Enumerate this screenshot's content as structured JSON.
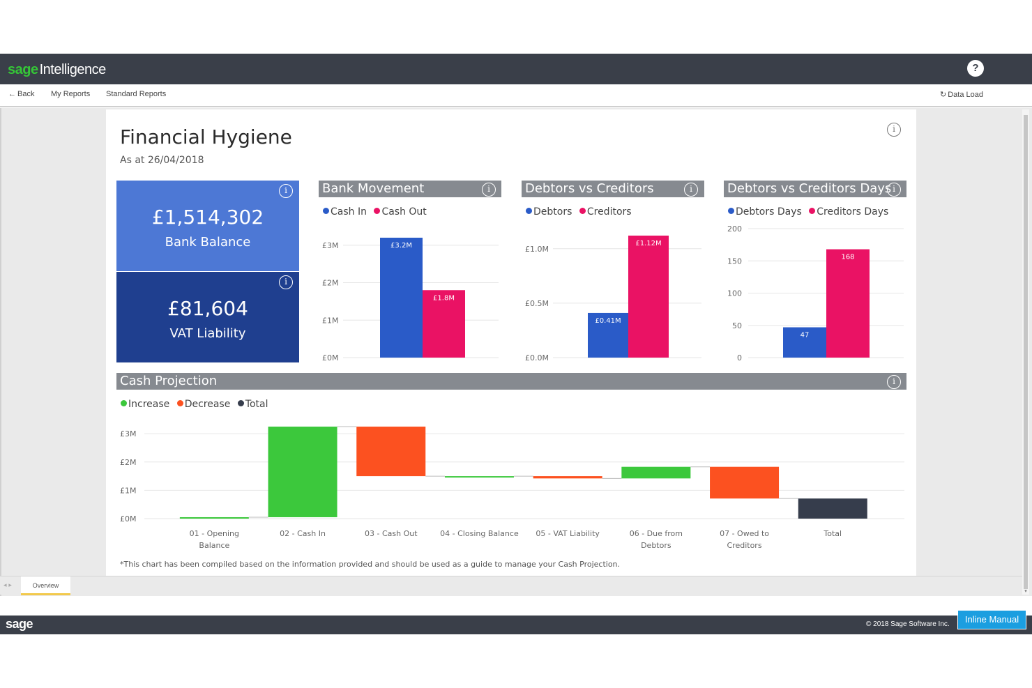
{
  "app": {
    "brand_sage": "sage",
    "brand_product": "Intelligence",
    "help_label": "?"
  },
  "nav": {
    "back": "Back",
    "my_reports": "My Reports",
    "standard_reports": "Standard Reports",
    "data_load": "Data Load"
  },
  "report": {
    "title": "Financial Hygiene",
    "subtitle": "As at 26/04/2018",
    "info_glyph": "i",
    "kpis": [
      {
        "value": "£1,514,302",
        "label": "Bank Balance",
        "color": "#4d78d5"
      },
      {
        "value": "£81,604",
        "label": "VAT Liability",
        "color": "#1f3f8f"
      }
    ],
    "footnote": "*This chart has been compiled based on the information provided and should be used as a guide to manage your Cash Projection."
  },
  "colors": {
    "blue": "#2a5bc8",
    "pink": "#ea1264",
    "green": "#3cc83c",
    "orange": "#fc5120",
    "dark": "#363d4c"
  },
  "chart_data": [
    {
      "type": "bar",
      "title": "Bank Movement",
      "categories": [
        "Cash In",
        "Cash Out"
      ],
      "values": [
        3.2,
        1.8
      ],
      "data_labels": [
        "£3.2M",
        "£1.8M"
      ],
      "legend": [
        "Cash In",
        "Cash Out"
      ],
      "ylim": [
        0,
        3.2
      ],
      "yticks": [
        0,
        1,
        2,
        3
      ],
      "ytick_labels": [
        "£0M",
        "£1M",
        "£2M",
        "£3M"
      ],
      "grid": true,
      "legend_position": "top-left"
    },
    {
      "type": "bar",
      "title": "Debtors vs Creditors",
      "categories": [
        "Debtors",
        "Creditors"
      ],
      "values": [
        0.41,
        1.12
      ],
      "data_labels": [
        "£0.41M",
        "£1.12M"
      ],
      "legend": [
        "Debtors",
        "Creditors"
      ],
      "ylim": [
        0,
        1.12
      ],
      "yticks": [
        0,
        0.5,
        1.0
      ],
      "ytick_labels": [
        "£0.0M",
        "£0.5M",
        "£1.0M"
      ],
      "grid": true,
      "legend_position": "top-left"
    },
    {
      "type": "bar",
      "title": "Debtors vs Creditors Days",
      "categories": [
        "Debtors Days",
        "Creditors Days"
      ],
      "values": [
        47,
        168
      ],
      "data_labels": [
        "47",
        "168"
      ],
      "legend": [
        "Debtors Days",
        "Creditors Days"
      ],
      "ylim": [
        0,
        200
      ],
      "yticks": [
        0,
        50,
        100,
        150,
        200
      ],
      "ytick_labels": [
        "0",
        "50",
        "100",
        "150",
        "200"
      ],
      "grid": true,
      "legend_position": "top-left"
    },
    {
      "type": "bar",
      "title": "Cash Projection",
      "subtype": "waterfall",
      "legend": [
        "Increase",
        "Decrease",
        "Total"
      ],
      "categories": [
        [
          "01 - Opening",
          "Balance"
        ],
        [
          "02 - Cash In"
        ],
        [
          "03 - Cash Out"
        ],
        [
          "04 - Closing Balance"
        ],
        [
          "05 - VAT Liability"
        ],
        [
          "06 - Due from",
          "Debtors"
        ],
        [
          "07 - Owed to",
          "Creditors"
        ],
        [
          "Total"
        ]
      ],
      "steps": [
        {
          "start": 0,
          "end": 0.05,
          "kind": "increase"
        },
        {
          "start": 0.05,
          "end": 3.25,
          "kind": "increase"
        },
        {
          "start": 3.25,
          "end": 1.5,
          "kind": "decrease"
        },
        {
          "start": 1.5,
          "end": 1.5,
          "kind": "increase"
        },
        {
          "start": 1.5,
          "end": 1.42,
          "kind": "decrease"
        },
        {
          "start": 1.42,
          "end": 1.83,
          "kind": "increase"
        },
        {
          "start": 1.83,
          "end": 0.71,
          "kind": "decrease"
        },
        {
          "start": 0,
          "end": 0.71,
          "kind": "total"
        }
      ],
      "ylim": [
        0,
        3.3
      ],
      "yticks": [
        0,
        1,
        2,
        3
      ],
      "ytick_labels": [
        "£0M",
        "£1M",
        "£2M",
        "£3M"
      ],
      "grid": true,
      "legend_position": "top-left"
    }
  ],
  "tabs": {
    "nav": "◂ ▸",
    "overview": "Overview"
  },
  "footer": {
    "logo": "sage",
    "copyright": "© 2018 Sage Software Inc.",
    "inline_manual": "Inline Manual"
  }
}
